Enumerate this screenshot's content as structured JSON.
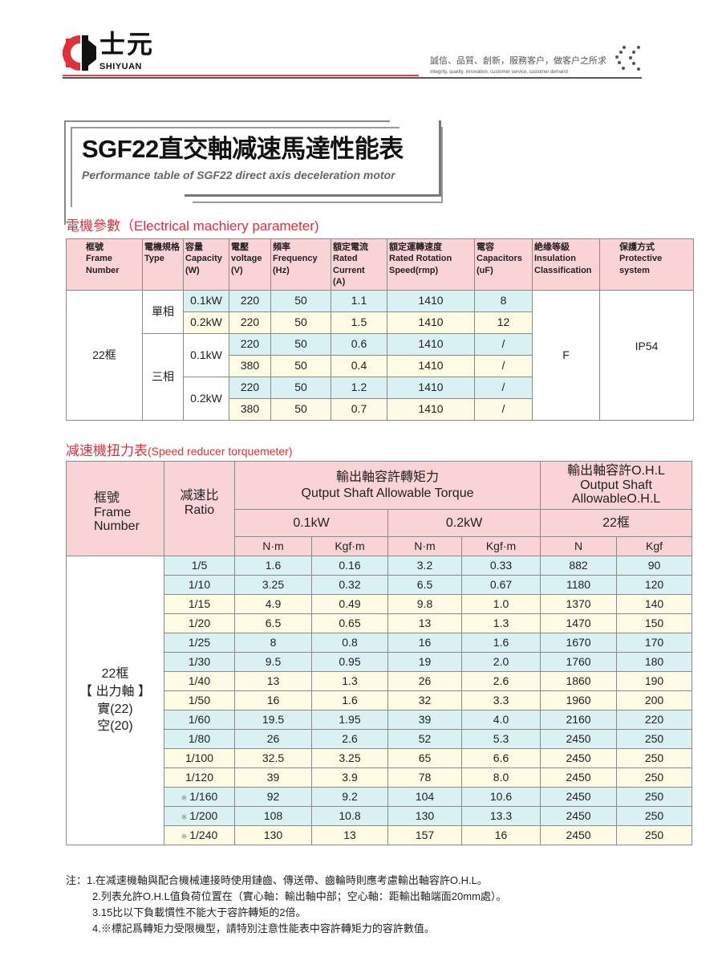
{
  "brand": {
    "name_cn": "士元",
    "name_en": "SHIYUAN",
    "slogan_cn": "誠信、品質、創新，服務客户，做客户之所求",
    "slogan_en": "Integrity, quality, innovation, customer service, customer demand",
    "colors": {
      "red": "#e0303a",
      "pink_header": "#f9d3d6",
      "blue_row": "#daf1f4",
      "yellow_row": "#fdfbe4"
    }
  },
  "title": {
    "main": "SGF22直交軸减速馬達性能表",
    "sub": "Performance table of SGF22 direct axis deceleration motor"
  },
  "electrical": {
    "section_title": "電機參數（Electrical machiery parameter)",
    "headers": [
      "框號\nFrame\nNumber",
      "電機規格\nType",
      "容量\nCapacity\n(W)",
      "電壓\nvoltage\n(V)",
      "頻率\nFrequency\n(Hz)",
      "額定電流\nRated\nCurrent\n(A)",
      "額定運轉速度\nRated Rotation\nSpeed(rmp)",
      "電容\nCapacitors\n(uF)",
      "絶缘等級\nInsulation\nClassification",
      "保護方式\nProtective\nsystem"
    ],
    "frame": "22框",
    "types": [
      "單相",
      "三相"
    ],
    "insulation": "F",
    "protection": "IP54",
    "rows": [
      {
        "capacity": "0.1kW",
        "voltage": "220",
        "frequency": "50",
        "current": "1.1",
        "speed": "1410",
        "capacitor": "8"
      },
      {
        "capacity": "0.2kW",
        "voltage": "220",
        "frequency": "50",
        "current": "1.5",
        "speed": "1410",
        "capacitor": "12"
      },
      {
        "capacity": "0.1kW",
        "voltage": "220",
        "frequency": "50",
        "current": "0.6",
        "speed": "1410",
        "capacitor": "/"
      },
      {
        "capacity": "0.1kW",
        "voltage": "380",
        "frequency": "50",
        "current": "0.4",
        "speed": "1410",
        "capacitor": "/"
      },
      {
        "capacity": "0.2kW",
        "voltage": "220",
        "frequency": "50",
        "current": "1.2",
        "speed": "1410",
        "capacitor": "/"
      },
      {
        "capacity": "0.2kW",
        "voltage": "380",
        "frequency": "50",
        "current": "0.7",
        "speed": "1410",
        "capacitor": "/"
      }
    ]
  },
  "torque": {
    "section_title_cn": "减速機扭力表",
    "section_title_en": "(Speed reducer torquemeter)",
    "h_frame": "框號\nFrame\nNumber",
    "h_ratio": "减速比\nRatio",
    "h_torque": "輸出軸容許轉矩力\nQutput Shaft Allowable Torque",
    "h_ohl": "輸出軸容許O.H.L\nOutput Shaft\nAllowableO.H.L",
    "h_p1": "0.1kW",
    "h_p2": "0.2kW",
    "h_p3": "22框",
    "units": [
      "N·m",
      "Kgf·m",
      "N·m",
      "Kgf·m",
      "N",
      "Kgf"
    ],
    "frame_label": "22框\n【 出力軸 】\n實(22)\n空(20)",
    "star": "※",
    "rows": [
      {
        "ratio": "1/5",
        "star": false,
        "v": [
          "1.6",
          "0.16",
          "3.2",
          "0.33",
          "882",
          "90"
        ]
      },
      {
        "ratio": "1/10",
        "star": false,
        "v": [
          "3.25",
          "0.32",
          "6.5",
          "0.67",
          "1180",
          "120"
        ]
      },
      {
        "ratio": "1/15",
        "star": false,
        "v": [
          "4.9",
          "0.49",
          "9.8",
          "1.0",
          "1370",
          "140"
        ]
      },
      {
        "ratio": "1/20",
        "star": false,
        "v": [
          "6.5",
          "0.65",
          "13",
          "1.3",
          "1470",
          "150"
        ]
      },
      {
        "ratio": "1/25",
        "star": false,
        "v": [
          "8",
          "0.8",
          "16",
          "1.6",
          "1670",
          "170"
        ]
      },
      {
        "ratio": "1/30",
        "star": false,
        "v": [
          "9.5",
          "0.95",
          "19",
          "2.0",
          "1760",
          "180"
        ]
      },
      {
        "ratio": "1/40",
        "star": false,
        "v": [
          "13",
          "1.3",
          "26",
          "2.6",
          "1860",
          "190"
        ]
      },
      {
        "ratio": "1/50",
        "star": false,
        "v": [
          "16",
          "1.6",
          "32",
          "3.3",
          "1960",
          "200"
        ]
      },
      {
        "ratio": "1/60",
        "star": false,
        "v": [
          "19.5",
          "1.95",
          "39",
          "4.0",
          "2160",
          "220"
        ]
      },
      {
        "ratio": "1/80",
        "star": false,
        "v": [
          "26",
          "2.6",
          "52",
          "5.3",
          "2450",
          "250"
        ]
      },
      {
        "ratio": "1/100",
        "star": false,
        "v": [
          "32.5",
          "3.25",
          "65",
          "6.6",
          "2450",
          "250"
        ]
      },
      {
        "ratio": "1/120",
        "star": false,
        "v": [
          "39",
          "3.9",
          "78",
          "8.0",
          "2450",
          "250"
        ]
      },
      {
        "ratio": "1/160",
        "star": true,
        "v": [
          "92",
          "9.2",
          "104",
          "10.6",
          "2450",
          "250"
        ]
      },
      {
        "ratio": "1/200",
        "star": true,
        "v": [
          "108",
          "10.8",
          "130",
          "13.3",
          "2450",
          "250"
        ]
      },
      {
        "ratio": "1/240",
        "star": true,
        "v": [
          "130",
          "13",
          "157",
          "16",
          "2450",
          "250"
        ]
      }
    ]
  },
  "notes": [
    "注：1.在减速機軸與配合機械連接時使用鏈齒、傳送帶、齒輪時則應考慮輸出軸容許O.H.L。",
    "2.列表允許O.H.L值負荷位置在（實心軸：輸出軸中部；空心軸：距輸出軸端面20mm處）。",
    "3.15比以下負載慣性不能大于容許轉矩的2倍。",
    "4.※標記爲轉矩力受限機型，請特別注意性能表中容許轉矩力的容許數值。"
  ]
}
